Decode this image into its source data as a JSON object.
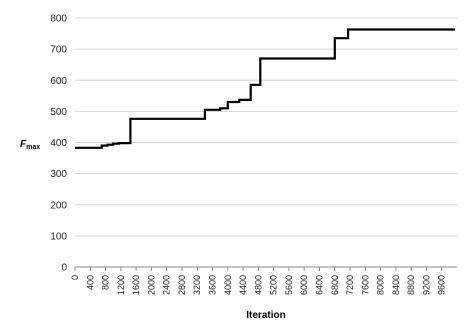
{
  "chart_data": {
    "type": "line",
    "xlabel": "Iteration",
    "ylabel": "F",
    "ylabel_sub": "max",
    "xlim": [
      0,
      10000
    ],
    "ylim": [
      0,
      800
    ],
    "grid": "horizontal",
    "x_ticks": [
      0,
      400,
      800,
      1200,
      1600,
      2000,
      2400,
      2800,
      3200,
      3600,
      4000,
      4400,
      4800,
      5200,
      5600,
      6000,
      6400,
      6800,
      7200,
      7600,
      8000,
      8400,
      8800,
      9200,
      9600
    ],
    "y_ticks": [
      0,
      100,
      200,
      300,
      400,
      500,
      600,
      700,
      800
    ],
    "series": [
      {
        "x": [
          0,
          700,
          700,
          850,
          850,
          1000,
          1000,
          1150,
          1150,
          1450,
          1450,
          3400,
          3400,
          3800,
          3800,
          4000,
          4000,
          4300,
          4300,
          4600,
          4600,
          4850,
          4850,
          6800,
          6800,
          7150,
          7150,
          9950
        ],
        "y": [
          383,
          383,
          390,
          390,
          393,
          393,
          396,
          396,
          398,
          398,
          476,
          476,
          505,
          505,
          510,
          510,
          530,
          530,
          537,
          537,
          585,
          585,
          670,
          670,
          735,
          735,
          763,
          763
        ]
      }
    ]
  }
}
